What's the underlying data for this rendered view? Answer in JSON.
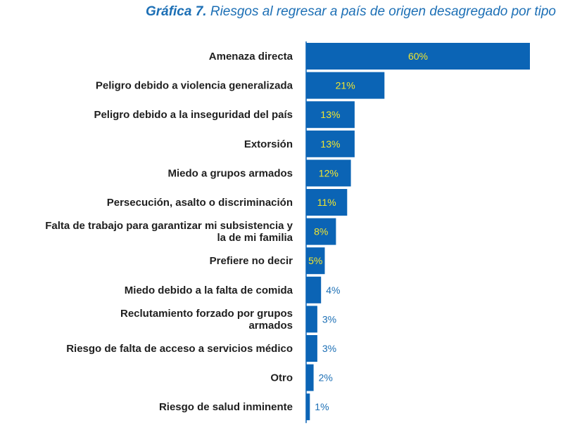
{
  "title": {
    "figure_number": "Gráfica 7.",
    "text": "Riesgos al regresar a país de origen desagregado por tipo"
  },
  "colors": {
    "bar": "#0b64b5",
    "axis": "#0b64b5",
    "title": "#1c6fb5",
    "value_inside": "#f2e62e",
    "value_outside": "#1c6fb5",
    "category_text": "#1f1f1f"
  },
  "chart_data": {
    "type": "bar",
    "orientation": "horizontal",
    "title": "Gráfica 7. Riesgos al regresar a país de origen desagregado por tipo",
    "categories": [
      [
        "Amenaza directa"
      ],
      [
        "Peligro debido a violencia generalizada"
      ],
      [
        "Peligro debido a la inseguridad del país"
      ],
      [
        "Extorsión"
      ],
      [
        "Miedo a grupos armados"
      ],
      [
        "Persecución, asalto o discriminación"
      ],
      [
        "Falta de trabajo para garantizar mi subsistencia y",
        "la de mi familia"
      ],
      [
        "Prefiere no decir"
      ],
      [
        "Miedo debido a la falta de comida"
      ],
      [
        "Reclutamiento forzado por grupos",
        "armados"
      ],
      [
        "Riesgo de falta de acceso a servicios médico"
      ],
      [
        "Otro"
      ],
      [
        "Riesgo de salud inminente"
      ]
    ],
    "values": [
      60,
      21,
      13,
      13,
      12,
      11,
      8,
      5,
      4,
      3,
      3,
      2,
      1
    ],
    "value_labels": [
      "60%",
      "21%",
      "13%",
      "13%",
      "12%",
      "11%",
      "8%",
      "5%",
      "4%",
      "3%",
      "3%",
      "2%",
      "1%"
    ],
    "xlim": [
      0,
      60
    ],
    "unit": "%",
    "grid": false,
    "legend": "none"
  }
}
